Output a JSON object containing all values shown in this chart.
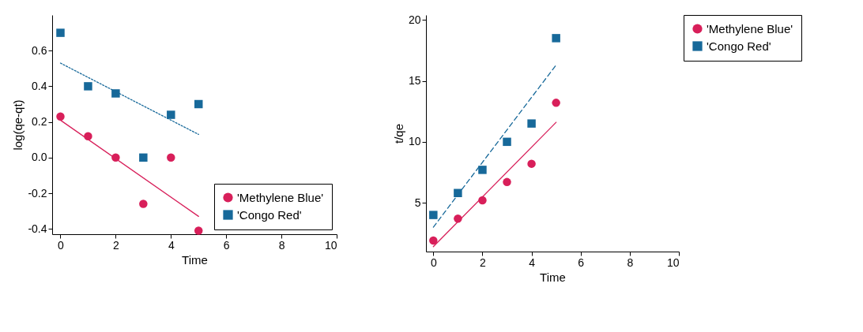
{
  "chart_data": [
    {
      "type": "scatter",
      "xlabel": "Time",
      "ylabel": "log(qe-qt)",
      "xlim": [
        -0.3,
        10
      ],
      "xticks": [
        0,
        2,
        4,
        6,
        8,
        10
      ],
      "ylim": [
        -0.43,
        0.8
      ],
      "yticks": [
        {
          "value": -0.4,
          "label": "-0.4"
        },
        {
          "value": -0.2,
          "label": "-0.2"
        },
        {
          "value": 0,
          "label": "0.0"
        },
        0.2,
        0.4,
        0.6
      ],
      "legend": "bottom right",
      "series": [
        {
          "name": "'Methylene Blue'",
          "marker": "circle",
          "color": "#d81f5a",
          "x": [
            0,
            1,
            2,
            3,
            4,
            5
          ],
          "values": [
            0.23,
            0.12,
            0.0,
            -0.26,
            0.0,
            -0.41
          ]
        },
        {
          "name": "'Congo Red'",
          "marker": "square",
          "color": "#17699a",
          "x": [
            0,
            1,
            2,
            3,
            4,
            5
          ],
          "values": [
            0.7,
            0.4,
            0.36,
            0.0,
            0.24,
            0.3
          ]
        },
        {
          "type": "line",
          "line_style": "solid",
          "color": "#d81f5a",
          "x": [
            0,
            5
          ],
          "values": [
            0.21,
            -0.33
          ]
        },
        {
          "type": "line",
          "line_style": "dotted",
          "color": "#17699a",
          "x": [
            0,
            5
          ],
          "values": [
            0.53,
            0.13
          ]
        }
      ]
    },
    {
      "type": "scatter",
      "xlabel": "Time",
      "ylabel": "t/qe",
      "xlim": [
        -0.3,
        10
      ],
      "xticks": [
        0,
        2,
        4,
        6,
        8,
        10
      ],
      "ylim": [
        1,
        20.4
      ],
      "yticks": [
        5,
        10,
        15,
        20
      ],
      "legend": "right",
      "series": [
        {
          "name": "'Methylene Blue'",
          "marker": "circle",
          "color": "#d81f5a",
          "x": [
            0,
            1,
            2,
            3,
            4,
            5
          ],
          "values": [
            1.9,
            3.7,
            5.2,
            6.7,
            8.2,
            13.2
          ]
        },
        {
          "name": "'Congo Red'",
          "marker": "square",
          "color": "#17699a",
          "x": [
            0,
            1,
            2,
            3,
            4,
            5
          ],
          "values": [
            4.0,
            5.8,
            7.7,
            10.0,
            11.5,
            18.5
          ]
        },
        {
          "type": "line",
          "line_style": "solid",
          "color": "#d81f5a",
          "x": [
            0,
            5
          ],
          "values": [
            1.4,
            11.6
          ]
        },
        {
          "type": "line",
          "line_style": "dashed",
          "color": "#17699a",
          "x": [
            0,
            5
          ],
          "values": [
            3.0,
            16.3
          ]
        }
      ]
    }
  ]
}
